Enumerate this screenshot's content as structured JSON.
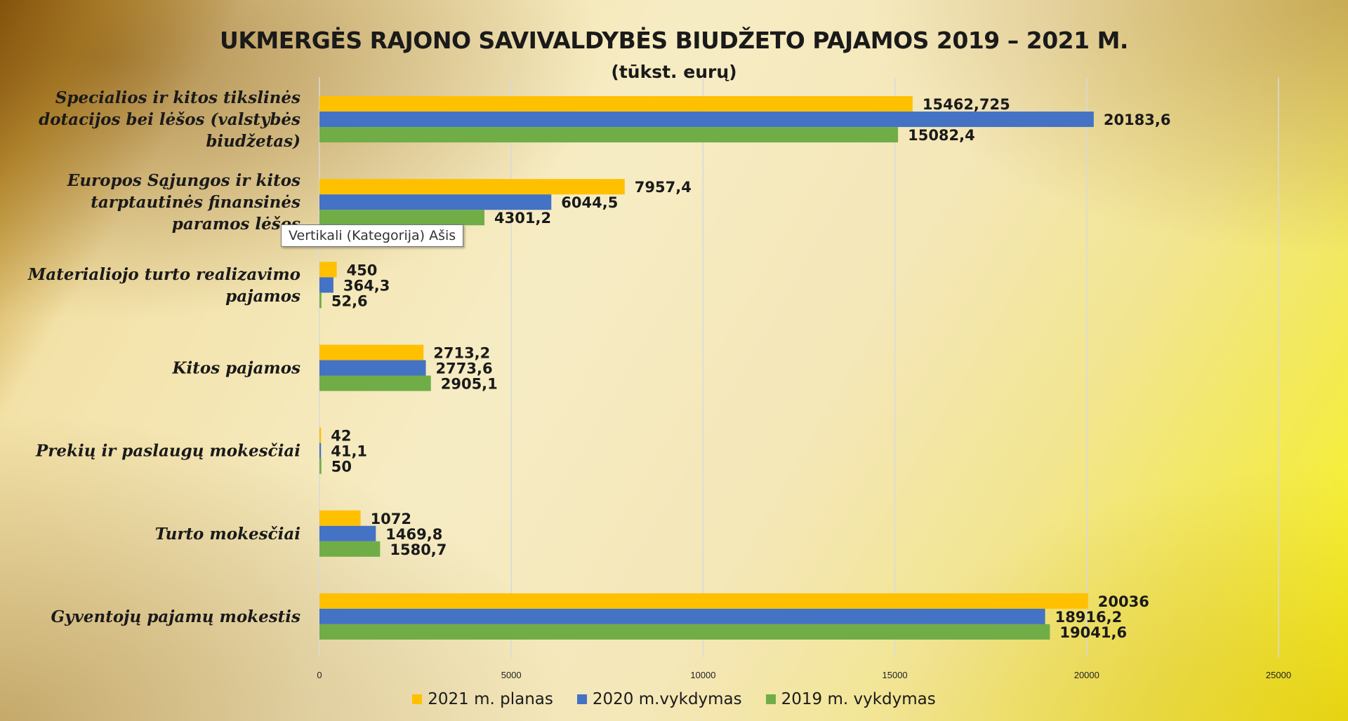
{
  "chart_data": {
    "type": "bar",
    "orientation": "horizontal",
    "title": "UKMERGĖS RAJONO SAVIVALDYBĖS BIUDŽETO PAJAMOS 2019 – 2021 M.",
    "subtitle": "(tūkst. eurų)",
    "categories": [
      "Specialios ir kitos tikslinės dotacijos bei lėšos (valstybės biudžetas)",
      "Europos Sąjungos ir kitos tarptautinės finansinės paramos lėšos",
      "Materialiojo turto realizavimo pajamos",
      "Kitos pajamos",
      "Prekių ir paslaugų mokesčiai",
      "Turto mokesčiai",
      "Gyventojų pajamų mokestis"
    ],
    "category_lines": [
      [
        "Specialios ir kitos tikslinės",
        "dotacijos bei lėšos (valstybės",
        "biudžetas)"
      ],
      [
        "Europos Sąjungos ir kitos",
        "tarptautinės finansinės",
        "paramos lėšos"
      ],
      [
        "Materialiojo turto realizavimo",
        "pajamos"
      ],
      [
        "Kitos pajamos"
      ],
      [
        "Prekių ir paslaugų mokesčiai"
      ],
      [
        "Turto mokesčiai"
      ],
      [
        "Gyventojų pajamų mokestis"
      ]
    ],
    "series": [
      {
        "name": "2021 m. planas",
        "color": "#ffc000",
        "values": [
          15462.725,
          7957.4,
          450,
          2713.2,
          42,
          1072,
          20036
        ],
        "labels": [
          "15462,725",
          "7957,4",
          "450",
          "2713,2",
          "42",
          "1072",
          "20036"
        ]
      },
      {
        "name": "2020 m.vykdymas",
        "color": "#4472c4",
        "values": [
          20183.6,
          6044.5,
          364.3,
          2773.6,
          41.1,
          1469.8,
          18916.2
        ],
        "labels": [
          "20183,6",
          "6044,5",
          "364,3",
          "2773,6",
          "41,1",
          "1469,8",
          "18916,2"
        ]
      },
      {
        "name": "2019 m. vykdymas",
        "color": "#70ad47",
        "values": [
          15082.4,
          4301.2,
          52.6,
          2905.1,
          50,
          1580.7,
          19041.6
        ],
        "labels": [
          "15082,4",
          "4301,2",
          "52,6",
          "2905,1",
          "50",
          "1580,7",
          "19041,6"
        ]
      }
    ],
    "xlim": [
      0,
      25000
    ],
    "xticks": [
      0,
      5000,
      10000,
      15000,
      20000,
      25000
    ],
    "grid": true,
    "legend_position": "bottom"
  },
  "tooltip": {
    "text": "Vertikali (Kategorija) Ašis"
  }
}
